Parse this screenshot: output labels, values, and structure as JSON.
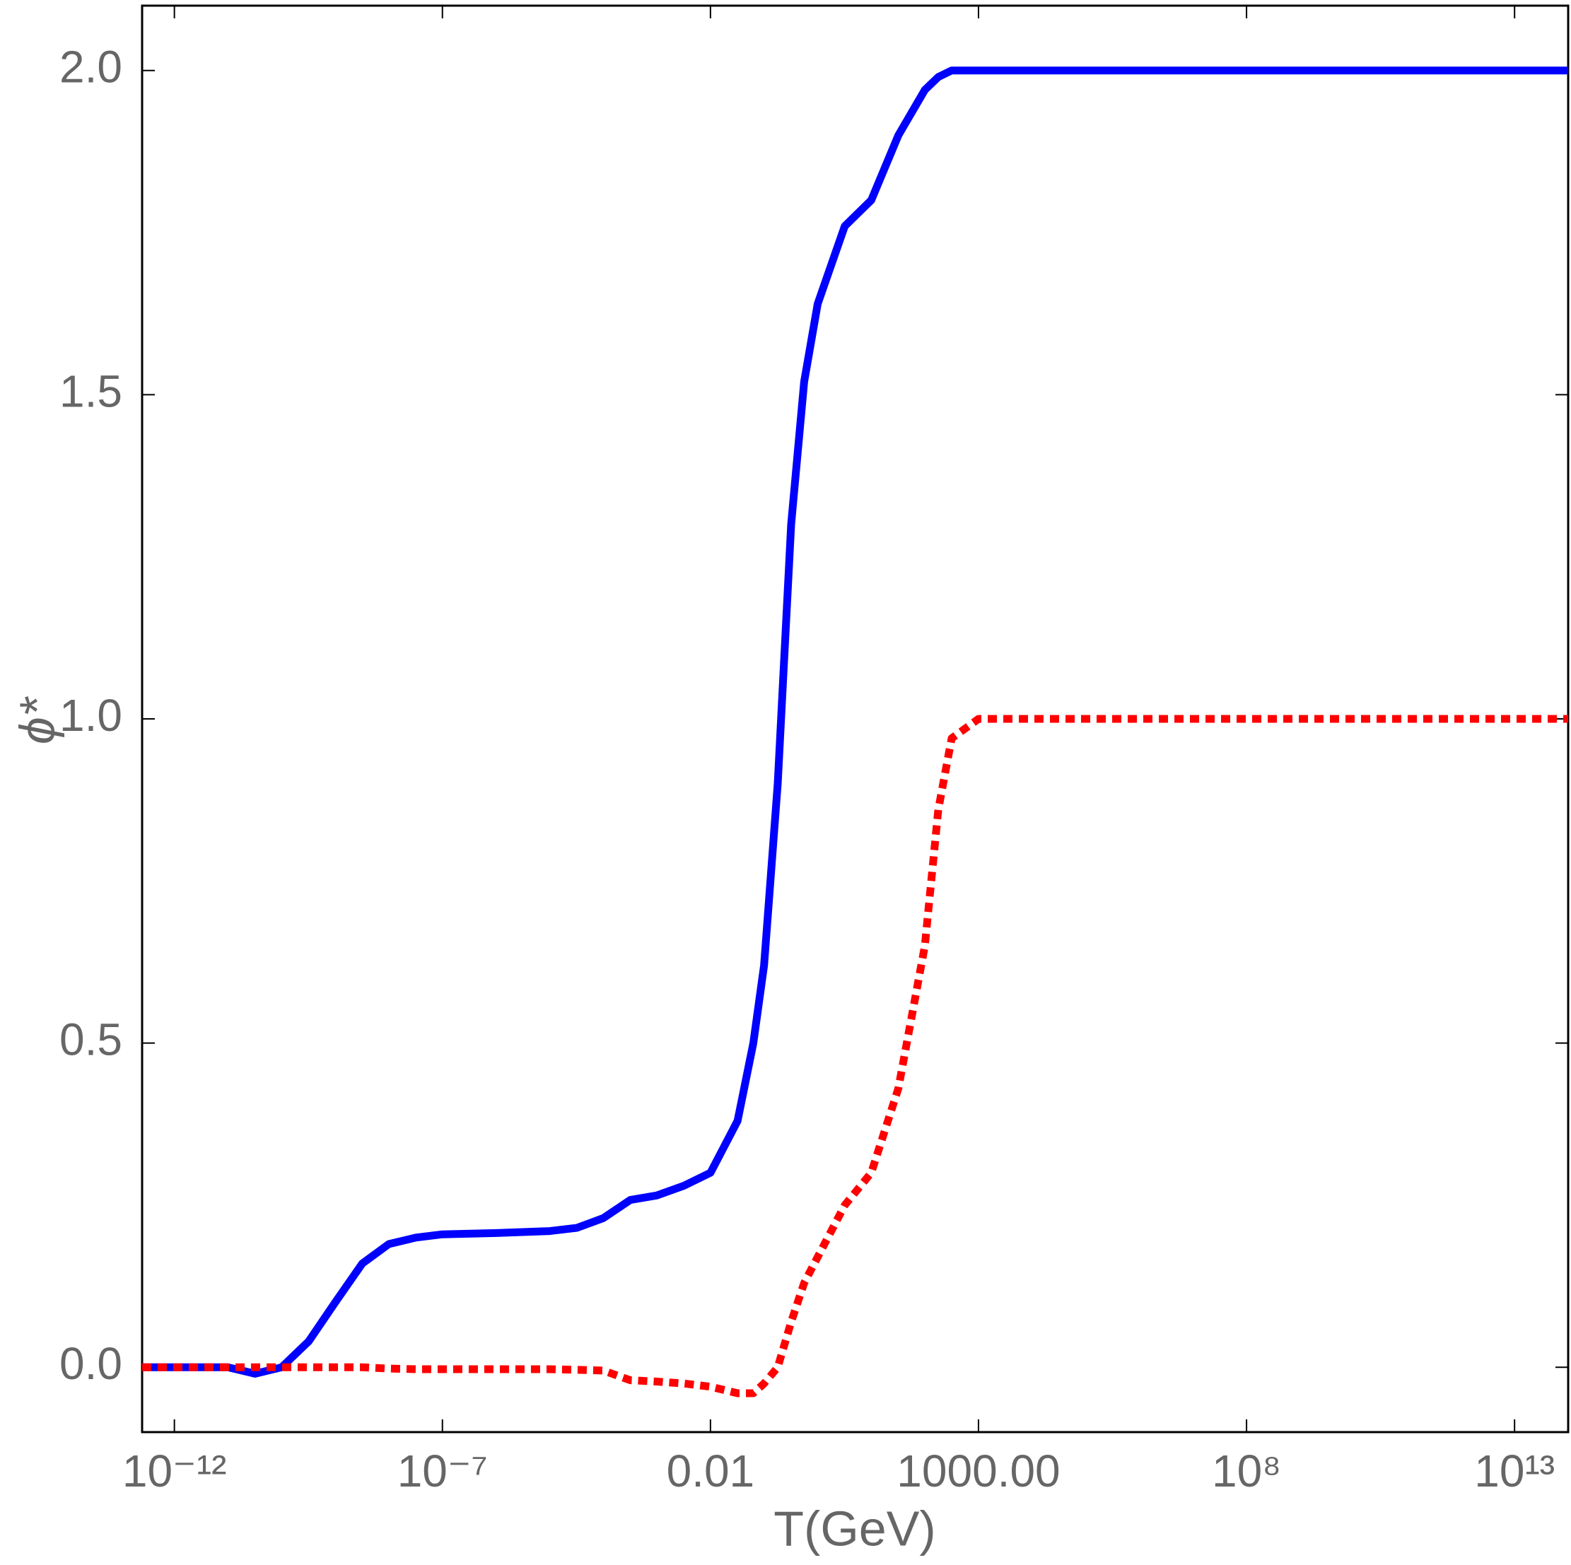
{
  "chart_data": {
    "type": "line",
    "xlabel": "T(GeV)",
    "ylabel": "ϕ*",
    "log_x": true,
    "grid": false,
    "xlim": [
      2.5e-13,
      100000000000000.0
    ],
    "ylim": [
      -0.1,
      2.1
    ],
    "xticks": [
      {
        "value": 1e-12,
        "label": "10⁻¹²"
      },
      {
        "value": 1e-07,
        "label": "10⁻⁷"
      },
      0.01,
      {
        "value": 1000,
        "label": "1000.00"
      },
      {
        "value": 100000000.0,
        "label": "10⁸"
      },
      {
        "value": 10000000000000.0,
        "label": "10¹³"
      }
    ],
    "yticks": [
      {
        "value": 0,
        "label": "0.0"
      },
      0.5,
      {
        "value": 1,
        "label": "1.0"
      },
      1.5,
      {
        "value": 2,
        "label": "2.0"
      }
    ],
    "x": [
      2.5e-13,
      1e-12,
      1e-11,
      3.2e-11,
      1e-10,
      3.2e-10,
      1e-09,
      3.2e-09,
      1e-08,
      3.2e-08,
      1e-07,
      1e-06,
      1e-05,
      3.2e-05,
      0.0001,
      0.00032,
      0.001,
      0.0032,
      0.01,
      0.032,
      0.063,
      0.1,
      0.18,
      0.32,
      0.56,
      1,
      3.2,
      10,
      32,
      100,
      178,
      316,
      1000,
      100000000000000.0
    ],
    "series": [
      {
        "color": "#0000ff",
        "style": "solid",
        "values": [
          0,
          0,
          0,
          -0.01,
          0,
          0.04,
          0.1,
          0.16,
          0.19,
          0.2,
          0.205,
          0.207,
          0.21,
          0.215,
          0.23,
          0.258,
          0.265,
          0.28,
          0.3,
          0.38,
          0.5,
          0.62,
          0.9,
          1.3,
          1.52,
          1.64,
          1.76,
          1.8,
          1.9,
          1.97,
          1.99,
          2.0,
          2.0,
          2.0
        ]
      },
      {
        "color": "#ff0000",
        "style": "dotted",
        "values": [
          0,
          0,
          0,
          0,
          0,
          0,
          0,
          0,
          -0.002,
          -0.003,
          -0.003,
          -0.003,
          -0.003,
          -0.004,
          -0.005,
          -0.02,
          -0.022,
          -0.025,
          -0.03,
          -0.04,
          -0.04,
          -0.025,
          0,
          0.07,
          0.13,
          0.17,
          0.25,
          0.3,
          0.43,
          0.65,
          0.86,
          0.97,
          1.0,
          1.0
        ]
      }
    ]
  }
}
